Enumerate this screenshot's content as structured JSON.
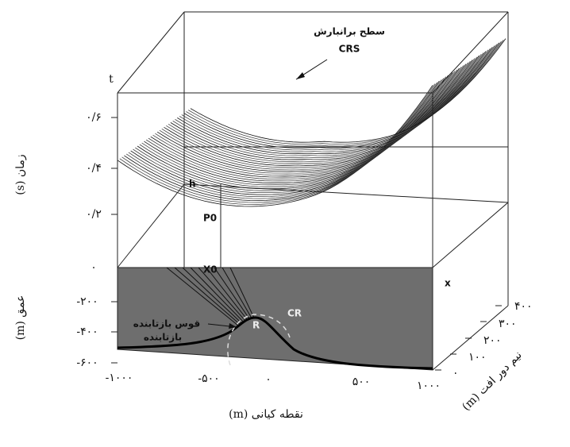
{
  "surface_label": {
    "line1": "سطح برانبارش",
    "line2": "CRS"
  },
  "axis_time": {
    "letter": "t",
    "title": "زمان (s)",
    "ticks": [
      "۰/۶",
      "۰/۴",
      "۰/۲",
      "۰"
    ]
  },
  "axis_depth": {
    "title": "عمق (m)",
    "ticks": [
      "-۲۰۰",
      "-۴۰۰",
      "-۶۰۰"
    ]
  },
  "axis_midpoint": {
    "letter": "x",
    "title": "نقطه کیانی (m)",
    "ticks": [
      "-۱۰۰۰",
      "-۵۰۰",
      "۰",
      "۵۰۰",
      "۱۰۰۰"
    ]
  },
  "axis_offset": {
    "letter": "h",
    "title": "نیم دور افت (m)",
    "ticks": [
      "۰",
      "۱۰۰",
      "۲۰۰",
      "۳۰۰",
      "۴۰۰"
    ]
  },
  "points": {
    "p0": "P0",
    "x0": "X0",
    "r": "R",
    "cr": "CR"
  },
  "labels": {
    "reflector_arc": "قوس بازتابنده",
    "reflector": "بازتابنده"
  }
}
